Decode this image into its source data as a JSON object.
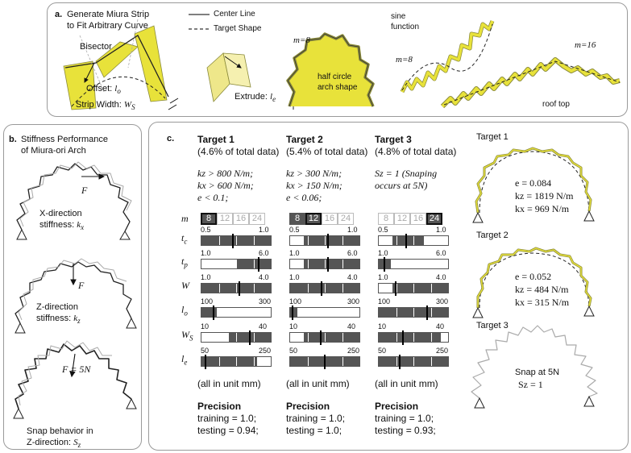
{
  "panel_a": {
    "label": "a.",
    "title_line1": "Generate Miura Strip",
    "title_line2": "to Fit Arbitrary Curve",
    "legend_center": "Center Line",
    "legend_target": "Target Shape",
    "bisector": "Bisector",
    "offset": "Offset: ",
    "offset_sym": "l",
    "offset_sub": "o",
    "strip_width": "Strip Width: ",
    "strip_sym": "W",
    "strip_sub": "S",
    "extrude": "Extrude: ",
    "extrude_sym": "l",
    "extrude_sub": "e",
    "m_half": "m=8",
    "half_circle_1": "half circle",
    "half_circle_2": "arch shape",
    "sine_1": "sine",
    "sine_2": "function",
    "m_sine": "m=8",
    "m_roof": "m=16",
    "roof": "roof top"
  },
  "panel_b": {
    "label": "b.",
    "title_line1": "Stiffness Performance",
    "title_line2": "of Miura-ori Arch",
    "force": "F",
    "force_5n": "F = 5N",
    "x_line1": "X-direction",
    "x_line2": "stiffness: ",
    "x_sym": "k",
    "x_sub": "x",
    "z_line1": "Z-direction",
    "z_line2": "stiffness: ",
    "z_sym": "k",
    "z_sub": "z",
    "snap_line1": "Snap behavior in",
    "snap_line2": "Z-direction: ",
    "snap_sym": "S",
    "snap_sub": "z"
  },
  "panel_c": {
    "label": "c.",
    "row_labels": [
      "m",
      "tc",
      "tp",
      "W",
      "lo",
      "Ws",
      "le"
    ],
    "m_options": [
      "8",
      "12",
      "16",
      "24"
    ],
    "targets": [
      {
        "name": "Target 1",
        "share": "(4.6% of total data)",
        "cond1": "kz > 800 N/m;",
        "cond2": "kx > 600 N/m;",
        "cond3": "e < 0.1;",
        "m_on": [
          1,
          0,
          0,
          0
        ],
        "m_sel": 0,
        "ranges": [
          {
            "min": "0.5",
            "max": "1.0",
            "fill_from": 0.0,
            "fill_to": 1.0,
            "mark": 0.45
          },
          {
            "min": "1.0",
            "max": "6.0",
            "fill_from": 0.5,
            "fill_to": 1.0,
            "mark": 0.82
          },
          {
            "min": "1.0",
            "max": "4.0",
            "fill_from": 0.0,
            "fill_to": 1.0,
            "mark": 0.55
          },
          {
            "min": "100",
            "max": "300",
            "fill_from": 0.0,
            "fill_to": 0.22,
            "mark": 0.18
          },
          {
            "min": "10",
            "max": "40",
            "fill_from": 0.4,
            "fill_to": 1.0,
            "mark": 0.7
          },
          {
            "min": "50",
            "max": "250",
            "fill_from": 0.0,
            "fill_to": 0.8,
            "mark": 0.06
          }
        ],
        "unit_note": "(all in unit mm)",
        "precision": "Precision",
        "training": "training = 1.0;",
        "testing": "testing = 0.94;"
      },
      {
        "name": "Target 2",
        "share": "(5.4% of total data)",
        "cond1": "kz > 300 N/m;",
        "cond2": "kx > 150 N/m;",
        "cond3": "e < 0.06;",
        "m_on": [
          1,
          1,
          0,
          0
        ],
        "m_sel": 1,
        "ranges": [
          {
            "min": "0.5",
            "max": "1.0",
            "fill_from": 0.2,
            "fill_to": 1.0,
            "mark": 0.55
          },
          {
            "min": "1.0",
            "max": "6.0",
            "fill_from": 0.2,
            "fill_to": 1.0,
            "mark": 0.55
          },
          {
            "min": "1.0",
            "max": "4.0",
            "fill_from": 0.0,
            "fill_to": 1.0,
            "mark": 0.45
          },
          {
            "min": "100",
            "max": "300",
            "fill_from": 0.0,
            "fill_to": 0.1,
            "mark": 0.04
          },
          {
            "min": "10",
            "max": "40",
            "fill_from": 0.2,
            "fill_to": 1.0,
            "mark": 0.44
          },
          {
            "min": "50",
            "max": "250",
            "fill_from": 0.0,
            "fill_to": 1.0,
            "mark": 0.5
          }
        ],
        "unit_note": "(all in unit mm)",
        "precision": "Precision",
        "training": "training = 1.0;",
        "testing": "testing = 1.0;"
      },
      {
        "name": "Target 3",
        "share": "(4.8% of total data)",
        "cond1": "Sz = 1 (Snaping",
        "cond2": "occurs at 5N)",
        "cond3": "",
        "m_on": [
          0,
          0,
          0,
          1
        ],
        "m_sel": 3,
        "ranges": [
          {
            "min": "0.5",
            "max": "1.0",
            "fill_from": 0.2,
            "fill_to": 0.65,
            "mark": 0.4
          },
          {
            "min": "1.0",
            "max": "6.0",
            "fill_from": 0.0,
            "fill_to": 0.18,
            "mark": 0.08
          },
          {
            "min": "1.0",
            "max": "4.0",
            "fill_from": 0.2,
            "fill_to": 1.0,
            "mark": 0.24
          },
          {
            "min": "100",
            "max": "300",
            "fill_from": 0.0,
            "fill_to": 1.0,
            "mark": 0.7
          },
          {
            "min": "10",
            "max": "40",
            "fill_from": 0.0,
            "fill_to": 0.9,
            "mark": 0.35
          },
          {
            "min": "50",
            "max": "250",
            "fill_from": 0.0,
            "fill_to": 1.0,
            "mark": 0.3
          }
        ],
        "unit_note": "(all in unit mm)",
        "precision": "Precision",
        "training": "training = 1.0;",
        "testing": "testing = 0.93;"
      }
    ],
    "results": [
      {
        "title": "Target 1",
        "e": "e = 0.084",
        "kz": "kz = 1819 N/m",
        "kx": "kx = 969 N/m"
      },
      {
        "title": "Target 2",
        "e": "e = 0.052",
        "kz": "kz = 484 N/m",
        "kx": "kx = 315 N/m"
      },
      {
        "title": "Target 3",
        "snap": "Snap at 5N",
        "sz": "Sz = 1"
      }
    ]
  },
  "colors": {
    "yellow": "#e8e23a",
    "olive": "#8a8a3a",
    "dark_fill": "#555555",
    "border": "#9a9a9a"
  }
}
